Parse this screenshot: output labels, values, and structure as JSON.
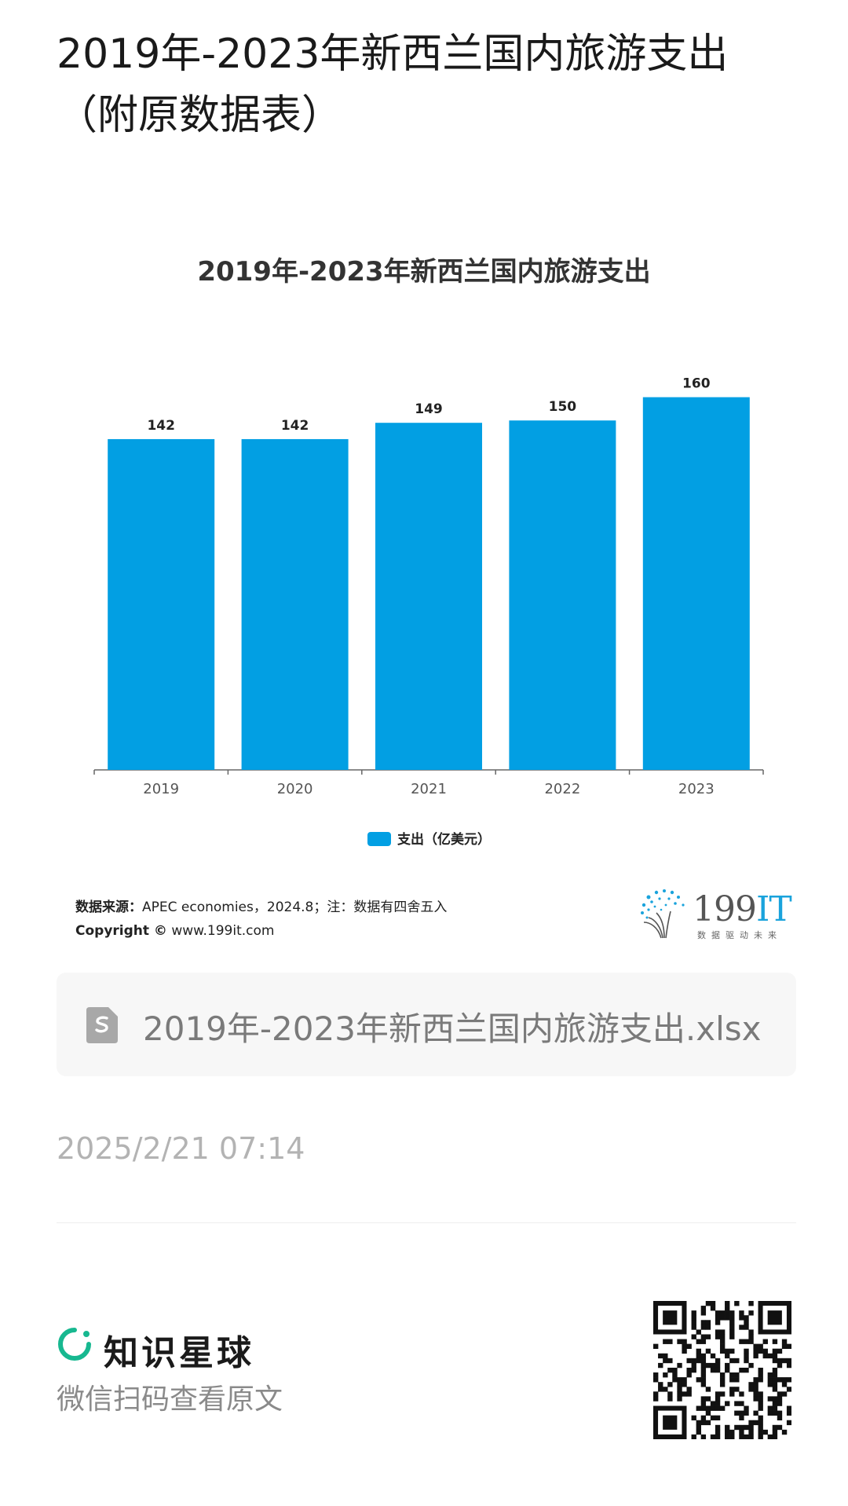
{
  "page": {
    "title": "2019年-2023年新西兰国内旅游支出（附原数据表）"
  },
  "chart_data": {
    "type": "bar",
    "title": "2019年-2023年新西兰国内旅游支出",
    "categories": [
      "2019",
      "2020",
      "2021",
      "2022",
      "2023"
    ],
    "series": [
      {
        "name": "支出（亿美元）",
        "values": [
          142,
          142,
          149,
          150,
          160
        ],
        "color": "#029fe3"
      }
    ],
    "data_labels": [
      "142",
      "142",
      "149",
      "150",
      "160"
    ],
    "ylim": [
      0,
      172
    ],
    "grid": false,
    "legend_position": "bottom-center"
  },
  "source": {
    "label": "数据来源：",
    "text": "APEC economies，2024.8；注：数据有四舍五入",
    "copyright_label": "Copyright ©",
    "copyright_url": "www.199it.com"
  },
  "brand_logo": {
    "name_main": "199",
    "name_it": "IT",
    "slogan": "数据驱动未来",
    "dot_color": "#1aa3dc"
  },
  "file": {
    "icon": "spreadsheet-file-icon",
    "name": "2019年-2023年新西兰国内旅游支出.xlsx"
  },
  "meta": {
    "timestamp": "2025/2/21 07:14"
  },
  "footer": {
    "brand": "知识星球",
    "brand_icon": "planet-ring-icon",
    "brand_color": "#17b890",
    "hint": "微信扫码查看原文",
    "qr_icon": "qr-code-icon"
  }
}
